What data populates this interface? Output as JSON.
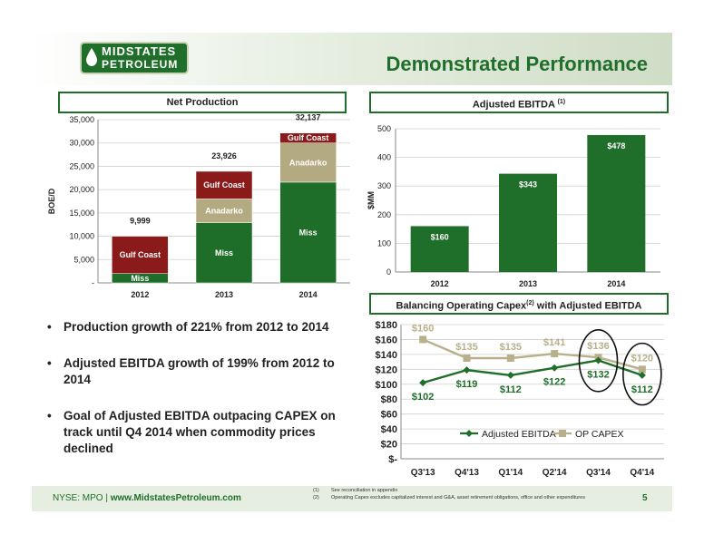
{
  "header": {
    "logo_line1": "MIDSTATES",
    "logo_line2": "PETROLEUM",
    "title": "Demonstrated Performance"
  },
  "panels": {
    "net_production": "Net Production",
    "adjusted_ebitda": "Adjusted EBITDA",
    "adjusted_ebitda_note": "(1)",
    "balancing_pre": "Balancing Operating Capex",
    "balancing_note": "(2)",
    "balancing_post": " with Adjusted EBITDA"
  },
  "bullets": [
    "Production growth of 221%  from 2012 to 2014",
    "Adjusted EBITDA growth of 199% from 2012 to 2014",
    "Goal of Adjusted EBITDA outpacing CAPEX on track until Q4 2014 when commodity prices declined"
  ],
  "footer": {
    "ticker": "NYSE: MPO",
    "separator": "|",
    "website": "www.MidstatesPetroleum.com",
    "footnote1_num": "(1)",
    "footnote1": "See reconciliation in appendix",
    "footnote2_num": "(2)",
    "footnote2": "Operating Capex excludes capitalized interest and G&A, asset retirement obligations, office and other expenditures",
    "page": "5"
  },
  "colors": {
    "brand_green": "#1f6e2a",
    "miss": "#1e6e2a",
    "anadarko": "#b4aa82",
    "gulf_coast": "#8b1a1a",
    "capex_line": "#b8b08a"
  },
  "chart_data": [
    {
      "type": "bar",
      "stacked": true,
      "categories": [
        "2012",
        "2013",
        "2014"
      ],
      "series": [
        {
          "name": "Miss",
          "values": [
            1999,
            12900,
            21600
          ]
        },
        {
          "name": "Anadarko",
          "values": [
            0,
            5100,
            8400
          ]
        },
        {
          "name": "Gulf Coast",
          "values": [
            8000,
            5926,
            2137
          ]
        }
      ],
      "totals": [
        "9,999",
        "23,926",
        "32,137"
      ],
      "ylabel": "BOE/D",
      "ylim": [
        0,
        35000
      ],
      "yticks": [
        "-",
        "5,000",
        "10,000",
        "15,000",
        "20,000",
        "25,000",
        "30,000",
        "35,000"
      ],
      "grid": true
    },
    {
      "type": "bar",
      "categories": [
        "2012",
        "2013",
        "2014"
      ],
      "values": [
        160,
        343,
        478
      ],
      "labels": [
        "$160",
        "$343",
        "$478"
      ],
      "ylabel": "$MM",
      "ylim": [
        0,
        500
      ],
      "yticks": [
        "0",
        "100",
        "200",
        "300",
        "400",
        "500"
      ],
      "grid": true
    },
    {
      "type": "line",
      "categories": [
        "Q3'13",
        "Q4'13",
        "Q1'14",
        "Q2'14",
        "Q3'14",
        "Q4'14"
      ],
      "series": [
        {
          "name": "Adjusted EBITDA",
          "values": [
            102,
            119,
            112,
            122,
            132,
            112
          ],
          "labels": [
            "$102",
            "$119",
            "$112",
            "$122",
            "$132",
            "$112"
          ]
        },
        {
          "name": "OP CAPEX",
          "values": [
            160,
            135,
            135,
            141,
            136,
            120
          ],
          "labels": [
            "$160",
            "$135",
            "$135",
            "$141",
            "$136",
            "$120"
          ]
        }
      ],
      "ylim": [
        0,
        180
      ],
      "yticks": [
        "$-",
        "$20",
        "$40",
        "$60",
        "$80",
        "$100",
        "$120",
        "$140",
        "$160",
        "$180"
      ],
      "legend": "bottom",
      "circled_categories": [
        "Q3'14",
        "Q4'14"
      ],
      "grid": true
    }
  ]
}
